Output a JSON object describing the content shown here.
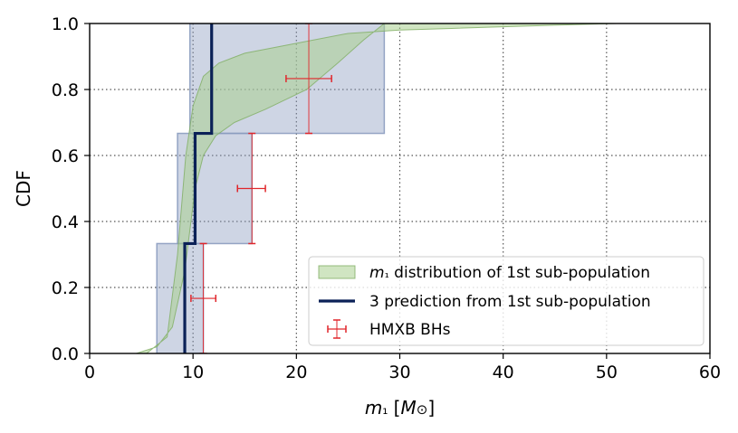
{
  "chart_data": {
    "type": "line",
    "xlabel": "m₁ [M⊙]",
    "ylabel": "CDF",
    "xlim": [
      0,
      60
    ],
    "ylim": [
      0,
      1
    ],
    "xticks": [
      0,
      10,
      20,
      30,
      40,
      50,
      60
    ],
    "yticks": [
      0.0,
      0.2,
      0.4,
      0.6,
      0.8,
      1.0
    ],
    "xtick_labels": [
      "0",
      "10",
      "20",
      "30",
      "40",
      "50",
      "60"
    ],
    "ytick_labels": [
      "0.0",
      "0.2",
      "0.4",
      "0.6",
      "0.8",
      "1.0"
    ],
    "grid": true,
    "legend_position": "lower-right",
    "colors": {
      "green_fill": "#a9cf8f",
      "green_edge": "#7fae63",
      "blue_band": "#8b9cbf",
      "prediction_line": "#0b2157",
      "hmxb": "#e0262b"
    },
    "series": [
      {
        "name": "m₁ distribution of 1st sub-population",
        "kind": "cdf_band",
        "lower": [
          [
            4.5,
            0.0
          ],
          [
            6.5,
            0.02
          ],
          [
            8.0,
            0.08
          ],
          [
            9.2,
            0.25
          ],
          [
            9.8,
            0.4
          ],
          [
            10.2,
            0.5
          ],
          [
            11.0,
            0.6
          ],
          [
            12.2,
            0.66
          ],
          [
            14.0,
            0.7
          ],
          [
            17.0,
            0.74
          ],
          [
            21.0,
            0.8
          ],
          [
            24.0,
            0.88
          ],
          [
            26.5,
            0.95
          ],
          [
            28.5,
            1.0
          ]
        ],
        "upper": [
          [
            5.5,
            0.0
          ],
          [
            7.5,
            0.05
          ],
          [
            8.5,
            0.3
          ],
          [
            9.3,
            0.6
          ],
          [
            10.0,
            0.75
          ],
          [
            11.0,
            0.84
          ],
          [
            12.5,
            0.88
          ],
          [
            15.0,
            0.91
          ],
          [
            20.0,
            0.94
          ],
          [
            25.0,
            0.97
          ],
          [
            30.0,
            0.98
          ],
          [
            35.0,
            0.985
          ],
          [
            40.0,
            0.99
          ],
          [
            45.0,
            0.995
          ],
          [
            51.0,
            1.0
          ]
        ]
      },
      {
        "name": "3 prediction from 1st sub-population",
        "kind": "step",
        "band_boxes": [
          {
            "x": [
              6.5,
              11.0
            ],
            "y": [
              0.0,
              0.333
            ]
          },
          {
            "x": [
              8.5,
              15.7
            ],
            "y": [
              0.333,
              0.667
            ]
          },
          {
            "x": [
              9.7,
              28.5
            ],
            "y": [
              0.667,
              1.0
            ]
          }
        ],
        "steps": [
          [
            9.2,
            0.0
          ],
          [
            9.2,
            0.333
          ],
          [
            10.2,
            0.333
          ],
          [
            10.2,
            0.667
          ],
          [
            11.8,
            0.667
          ],
          [
            11.8,
            1.0
          ]
        ]
      },
      {
        "name": "HMXB BHs",
        "kind": "errorbar",
        "points": [
          {
            "x": 11.0,
            "y": 0.167,
            "xerr": [
              9.8,
              12.2
            ],
            "yerr": [
              0.0,
              0.333
            ]
          },
          {
            "x": 15.7,
            "y": 0.5,
            "xerr": [
              14.3,
              17.0
            ],
            "yerr": [
              0.333,
              0.667
            ]
          },
          {
            "x": 21.2,
            "y": 0.833,
            "xerr": [
              19.0,
              23.4
            ],
            "yerr": [
              0.667,
              1.0
            ]
          }
        ]
      }
    ]
  }
}
